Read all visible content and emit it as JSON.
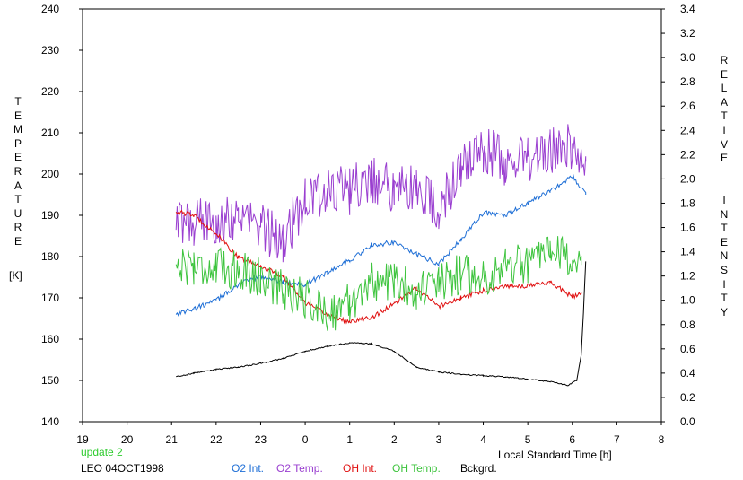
{
  "left_axis_label": "TEMPERATURE",
  "left_axis_unit": "[K]",
  "right_axis_label": "RELATIVE INTENSITY",
  "status": "update 2",
  "site_date": "LEO 04OCT1998",
  "chart_data": {
    "type": "line",
    "xlabel": "Local Standard Time [h]",
    "ylabel": "TEMPERATURE [K]",
    "y2label": "RELATIVE INTENSITY",
    "xlim": [
      19,
      32
    ],
    "ylim": [
      140,
      240
    ],
    "y2lim": [
      0.0,
      3.4
    ],
    "x_tick_labels": [
      "19",
      "20",
      "21",
      "22",
      "23",
      "0",
      "1",
      "2",
      "3",
      "4",
      "5",
      "6",
      "7",
      "8"
    ],
    "y_tick_labels": [
      "140",
      "150",
      "160",
      "170",
      "180",
      "190",
      "200",
      "210",
      "220",
      "230",
      "240"
    ],
    "y2_tick_labels": [
      "0.0",
      "0.2",
      "0.4",
      "0.6",
      "0.8",
      "1.0",
      "1.2",
      "1.4",
      "1.6",
      "1.8",
      "2.0",
      "2.2",
      "2.4",
      "2.6",
      "2.8",
      "3.0",
      "3.2",
      "3.4"
    ],
    "grid": false,
    "legend_position": "bottom",
    "series": [
      {
        "name": "O2 Int.",
        "axis": "right",
        "color": "#1f6fd6",
        "noise": 0.02,
        "x": [
          21.1,
          21.5,
          22.0,
          22.5,
          23.0,
          23.5,
          24.0,
          24.5,
          25.0,
          25.5,
          26.0,
          26.5,
          27.0,
          27.5,
          28.0,
          28.5,
          29.0,
          29.5,
          30.0,
          30.3
        ],
        "y": [
          0.89,
          0.93,
          1.0,
          1.13,
          1.2,
          1.15,
          1.13,
          1.23,
          1.33,
          1.45,
          1.48,
          1.38,
          1.3,
          1.5,
          1.72,
          1.7,
          1.8,
          1.9,
          2.02,
          1.87
        ]
      },
      {
        "name": "O2 Temp.",
        "axis": "left",
        "color": "#9a3fd0",
        "noise": 6,
        "x": [
          21.1,
          21.5,
          22.0,
          22.5,
          23.0,
          23.5,
          24.0,
          24.5,
          25.0,
          25.5,
          26.0,
          26.5,
          27.0,
          27.5,
          28.0,
          28.5,
          29.0,
          29.5,
          30.0,
          30.3
        ],
        "y": [
          188,
          188,
          189,
          190,
          187,
          184,
          194,
          196,
          196,
          199,
          196,
          197,
          191,
          201,
          206,
          203,
          204,
          205,
          207,
          203
        ]
      },
      {
        "name": "OH Int.",
        "axis": "right",
        "color": "#e01010",
        "noise": 0.02,
        "x": [
          21.1,
          21.5,
          22.0,
          22.5,
          23.0,
          23.5,
          24.0,
          24.5,
          25.0,
          25.5,
          26.0,
          26.5,
          27.0,
          27.5,
          28.0,
          28.5,
          29.0,
          29.5,
          30.0,
          30.2
        ],
        "y": [
          1.73,
          1.7,
          1.55,
          1.35,
          1.28,
          1.2,
          0.98,
          0.88,
          0.82,
          0.86,
          0.97,
          1.1,
          0.95,
          1.02,
          1.08,
          1.12,
          1.12,
          1.15,
          1.03,
          1.05
        ]
      },
      {
        "name": "OH Temp.",
        "axis": "left",
        "color": "#3ec43e",
        "noise": 5,
        "x": [
          21.1,
          21.5,
          22.0,
          22.5,
          23.0,
          23.5,
          24.0,
          24.5,
          25.0,
          25.5,
          26.0,
          26.5,
          27.0,
          27.5,
          28.0,
          28.5,
          29.0,
          29.5,
          30.0,
          30.2
        ],
        "y": [
          178,
          178,
          177,
          177,
          175,
          172,
          170,
          166,
          169,
          174,
          174,
          172,
          173,
          176,
          175,
          178,
          178,
          180,
          180,
          178
        ]
      },
      {
        "name": "Bckgrd.",
        "axis": "right",
        "color": "#000000",
        "noise": 0.005,
        "x": [
          21.1,
          21.5,
          22.0,
          22.5,
          23.0,
          23.5,
          24.0,
          24.5,
          25.0,
          25.5,
          26.0,
          26.5,
          27.0,
          27.5,
          28.0,
          28.5,
          29.0,
          29.5,
          29.9,
          30.1,
          30.2,
          30.25,
          30.3
        ],
        "y": [
          0.37,
          0.4,
          0.43,
          0.45,
          0.48,
          0.52,
          0.58,
          0.62,
          0.65,
          0.64,
          0.58,
          0.45,
          0.41,
          0.39,
          0.38,
          0.37,
          0.35,
          0.33,
          0.3,
          0.34,
          0.55,
          0.9,
          1.32
        ]
      }
    ]
  }
}
